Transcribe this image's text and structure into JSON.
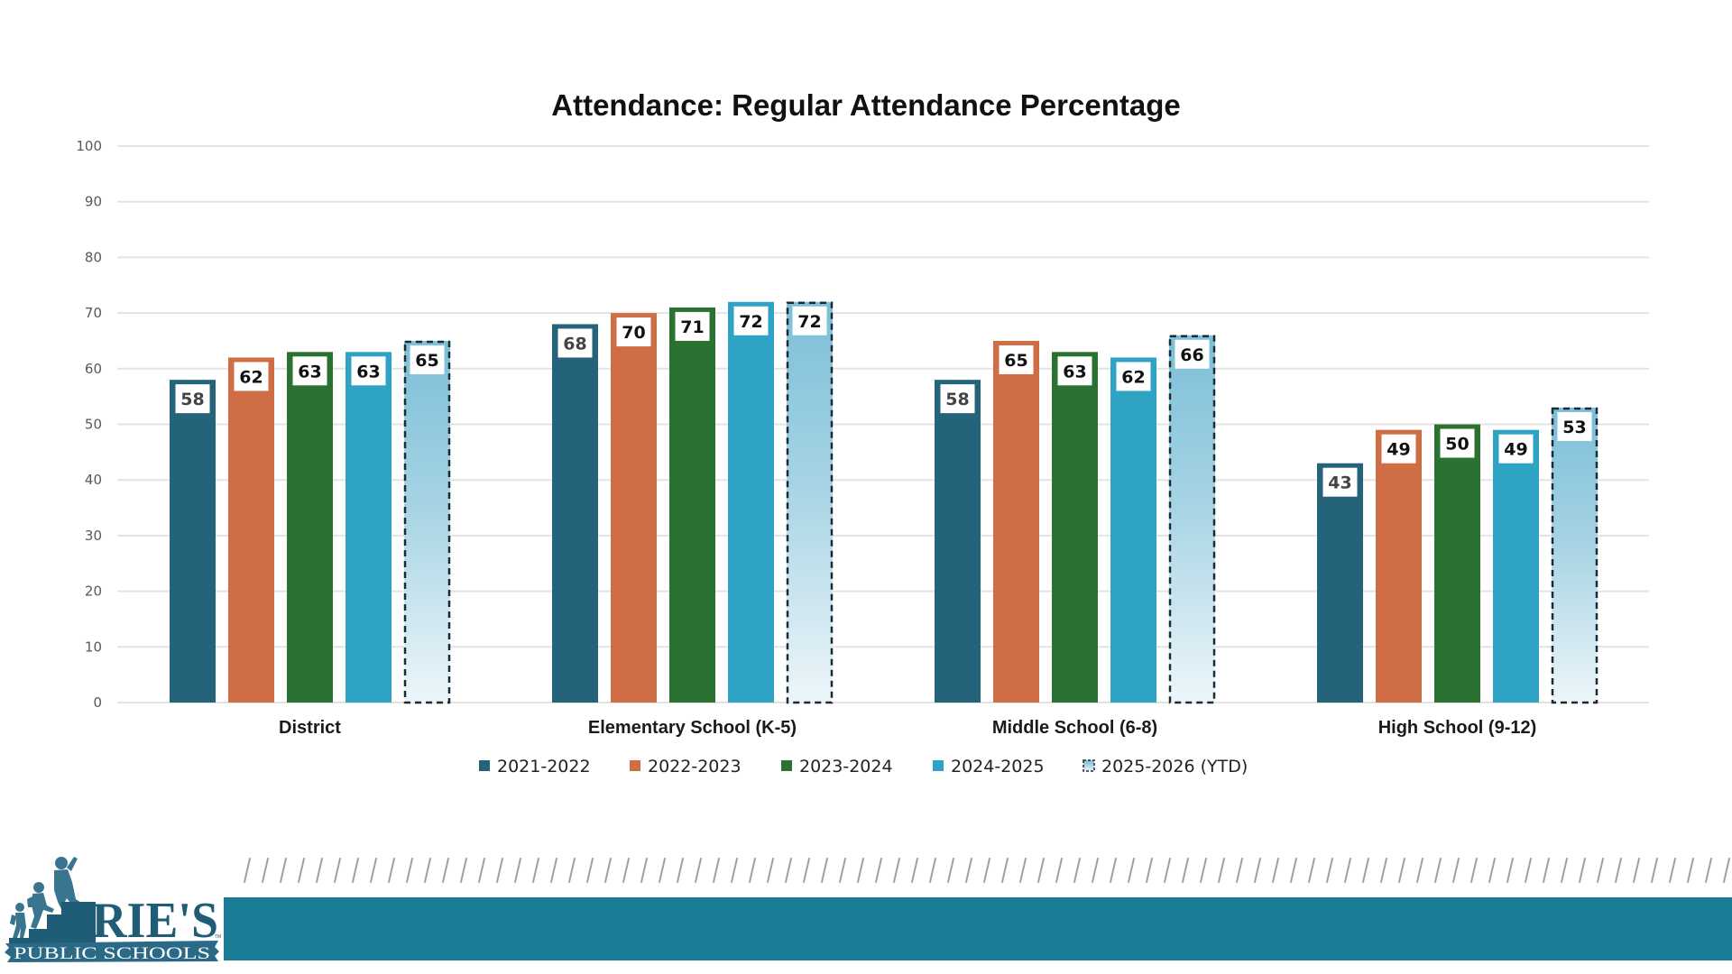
{
  "chart_data": {
    "type": "bar",
    "title": "Attendance: Regular Attendance Percentage",
    "xlabel": "",
    "ylabel": "",
    "ylim": [
      0,
      100
    ],
    "yticks": [
      0,
      10,
      20,
      30,
      40,
      50,
      60,
      70,
      80,
      90,
      100
    ],
    "grid": true,
    "legend_position": "bottom",
    "categories": [
      "District",
      "Elementary School (K-5)",
      "Middle School (6-8)",
      "High School (9-12)"
    ],
    "series": [
      {
        "name": "2021-2022",
        "color": "#25637a",
        "style": "solid",
        "values": [
          58,
          68,
          58,
          43
        ]
      },
      {
        "name": "2022-2023",
        "color": "#cf6d45",
        "style": "solid",
        "values": [
          62,
          70,
          65,
          49
        ]
      },
      {
        "name": "2023-2024",
        "color": "#2b7232",
        "style": "solid",
        "values": [
          63,
          71,
          63,
          50
        ]
      },
      {
        "name": "2024-2025",
        "color": "#2fa3c4",
        "style": "solid",
        "values": [
          63,
          72,
          62,
          49
        ]
      },
      {
        "name": "2025-2026 (YTD)",
        "color": "#7fc0d8",
        "style": "dashed-gradient",
        "values": [
          65,
          72,
          66,
          53
        ]
      }
    ]
  },
  "footer": {
    "logo_name": "ERIE'S",
    "logo_subtitle": "PUBLIC SCHOOLS",
    "logo_tm": "TM",
    "band_color": "#1b7c96"
  }
}
